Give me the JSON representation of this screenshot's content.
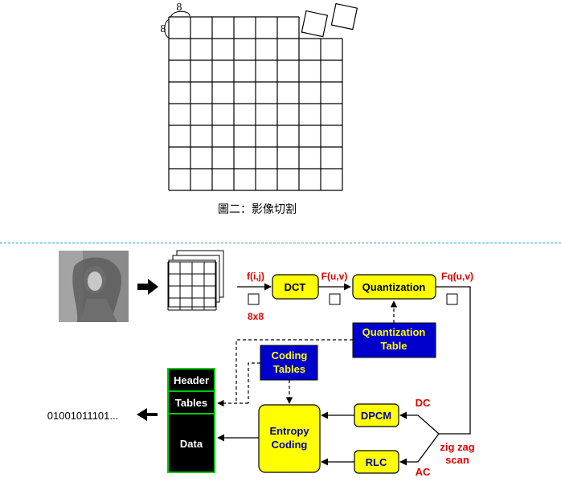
{
  "figure_top": {
    "block_dim_top": "8",
    "block_dim_left": "8",
    "caption": "圖二：影像切割"
  },
  "pipeline": {
    "input_label": "f(i,j)",
    "block_size_label": "8x8",
    "dct_label": "DCT",
    "dct_output": "F(u,v)",
    "quant_label": "Quantization",
    "quant_output": "Fq(u,v)",
    "quant_table": [
      "Quantization",
      "Table"
    ],
    "coding_tables": [
      "Coding",
      "Tables"
    ],
    "dc_label": "DC",
    "ac_label": "AC",
    "zigzag": [
      "zig zag",
      "scan"
    ],
    "dpcm_label": "DPCM",
    "rlc_label": "RLC",
    "entropy": [
      "Entropy",
      "Coding"
    ],
    "stream": {
      "header": "Header",
      "tables": "Tables",
      "data": "Data"
    },
    "bitstream": "01001011101..."
  },
  "colors": {
    "box_fill": "#ffff00",
    "table_fill": "#0000cc",
    "table_text": "#ffff00",
    "red_label": "#e00000",
    "stream_border": "#00cc00"
  }
}
